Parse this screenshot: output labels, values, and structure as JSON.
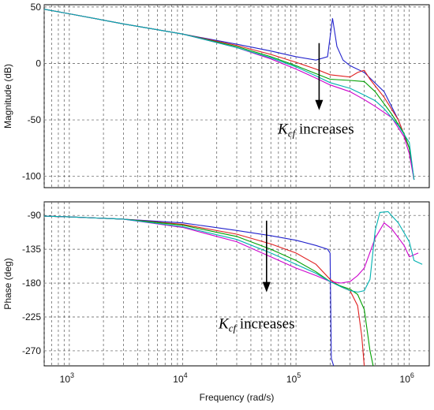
{
  "chart_data": {
    "type": "line",
    "x_scale": "log",
    "xlabel": "Frequency  (rad/s)",
    "xlim": [
      600,
      1500000
    ],
    "x_ticks": [
      {
        "value": 1000,
        "base": "10",
        "exp": "3"
      },
      {
        "value": 10000,
        "base": "10",
        "exp": "4"
      },
      {
        "value": 100000,
        "base": "10",
        "exp": "5"
      },
      {
        "value": 1000000,
        "base": "10",
        "exp": "6"
      }
    ],
    "grid": true,
    "legend": "none",
    "series_colors": [
      "#2222cc",
      "#e02020",
      "#00a000",
      "#cc00cc",
      "#00b0b0",
      "#c000c0"
    ],
    "panels": [
      {
        "id": "magnitude",
        "ylabel": "Magnitude  (dB)",
        "ylim": [
          -110,
          52
        ],
        "y_ticks": [
          50,
          0,
          -50,
          -100
        ],
        "y_tick_labels": [
          "50",
          "0",
          "-50",
          "-100"
        ],
        "annotation": {
          "symbol": "K",
          "subscript": "cf",
          "text": "increases",
          "arrow_x": 160000,
          "arrow_y": [
            18,
            -40
          ],
          "text_x": 150000,
          "text_y": -62
        },
        "series": [
          {
            "color": "#2222cc",
            "points": [
              [
                600,
                48
              ],
              [
                1000,
                44
              ],
              [
                3000,
                35
              ],
              [
                10000,
                26
              ],
              [
                30000,
                17
              ],
              [
                60000,
                11
              ],
              [
                100000,
                6
              ],
              [
                150000,
                3
              ],
              [
                190000,
                6
              ],
              [
                210000,
                40
              ],
              [
                230000,
                15
              ],
              [
                260000,
                3
              ],
              [
                300000,
                -2
              ],
              [
                400000,
                -8
              ],
              [
                600000,
                -25
              ],
              [
                800000,
                -50
              ],
              [
                1000000,
                -75
              ],
              [
                1100000,
                -103
              ]
            ]
          },
          {
            "color": "#e02020",
            "points": [
              [
                600,
                48
              ],
              [
                1000,
                44
              ],
              [
                3000,
                35
              ],
              [
                10000,
                26
              ],
              [
                30000,
                16
              ],
              [
                60000,
                8
              ],
              [
                100000,
                1
              ],
              [
                150000,
                -5
              ],
              [
                200000,
                -10
              ],
              [
                300000,
                -12
              ],
              [
                350000,
                -8
              ],
              [
                400000,
                -6
              ],
              [
                450000,
                -14
              ],
              [
                600000,
                -30
              ],
              [
                800000,
                -50
              ],
              [
                1000000,
                -75
              ],
              [
                1100000,
                -103
              ]
            ]
          },
          {
            "color": "#00a000",
            "points": [
              [
                600,
                48
              ],
              [
                1000,
                44
              ],
              [
                3000,
                35
              ],
              [
                10000,
                26
              ],
              [
                30000,
                15
              ],
              [
                60000,
                6
              ],
              [
                100000,
                -2
              ],
              [
                150000,
                -9
              ],
              [
                200000,
                -14
              ],
              [
                300000,
                -15
              ],
              [
                400000,
                -16
              ],
              [
                500000,
                -25
              ],
              [
                700000,
                -45
              ],
              [
                900000,
                -62
              ],
              [
                1000000,
                -75
              ],
              [
                1100000,
                -103
              ]
            ]
          },
          {
            "color": "#cc00cc",
            "points": [
              [
                600,
                48
              ],
              [
                1000,
                44
              ],
              [
                3000,
                35
              ],
              [
                10000,
                26
              ],
              [
                30000,
                14
              ],
              [
                60000,
                4
              ],
              [
                100000,
                -5
              ],
              [
                150000,
                -13
              ],
              [
                200000,
                -19
              ],
              [
                300000,
                -25
              ],
              [
                400000,
                -32
              ],
              [
                500000,
                -38
              ],
              [
                700000,
                -48
              ],
              [
                900000,
                -65
              ],
              [
                1000000,
                -80
              ],
              [
                1100000,
                -103
              ]
            ]
          },
          {
            "color": "#00b0b0",
            "points": [
              [
                600,
                48
              ],
              [
                1000,
                44
              ],
              [
                3000,
                35
              ],
              [
                10000,
                26
              ],
              [
                30000,
                14
              ],
              [
                60000,
                5
              ],
              [
                100000,
                -3
              ],
              [
                150000,
                -11
              ],
              [
                200000,
                -17
              ],
              [
                300000,
                -22
              ],
              [
                400000,
                -28
              ],
              [
                500000,
                -33
              ],
              [
                600000,
                -40
              ],
              [
                800000,
                -55
              ],
              [
                1000000,
                -70
              ],
              [
                1100000,
                -103
              ]
            ]
          }
        ]
      },
      {
        "id": "phase",
        "ylabel": "Phase  (deg)",
        "ylim": [
          -290,
          -72
        ],
        "y_ticks": [
          -90,
          -135,
          -180,
          -225,
          -270
        ],
        "y_tick_labels": [
          "-90",
          "-135",
          "-180",
          "-225",
          "-270"
        ],
        "annotation": {
          "symbol": "K",
          "subscript": "cf",
          "text": "increases",
          "arrow_x": 55000,
          "arrow_y": [
            -97,
            -190
          ],
          "text_x": 45000,
          "text_y": -240
        },
        "series": [
          {
            "color": "#2222cc",
            "points": [
              [
                600,
                -91
              ],
              [
                1000,
                -92
              ],
              [
                3000,
                -95
              ],
              [
                10000,
                -100
              ],
              [
                30000,
                -110
              ],
              [
                60000,
                -117
              ],
              [
                100000,
                -123
              ],
              [
                150000,
                -130
              ],
              [
                190000,
                -135
              ],
              [
                200000,
                -140
              ],
              [
                205000,
                -280
              ],
              [
                215000,
                -295
              ]
            ]
          },
          {
            "color": "#e02020",
            "points": [
              [
                600,
                -91
              ],
              [
                1000,
                -92
              ],
              [
                3000,
                -95
              ],
              [
                10000,
                -102
              ],
              [
                30000,
                -115
              ],
              [
                60000,
                -128
              ],
              [
                100000,
                -140
              ],
              [
                150000,
                -155
              ],
              [
                200000,
                -175
              ],
              [
                250000,
                -185
              ],
              [
                300000,
                -190
              ],
              [
                350000,
                -210
              ],
              [
                380000,
                -250
              ],
              [
                400000,
                -295
              ]
            ]
          },
          {
            "color": "#00a000",
            "points": [
              [
                600,
                -91
              ],
              [
                1000,
                -92
              ],
              [
                3000,
                -95
              ],
              [
                10000,
                -103
              ],
              [
                30000,
                -118
              ],
              [
                60000,
                -135
              ],
              [
                100000,
                -150
              ],
              [
                150000,
                -165
              ],
              [
                200000,
                -178
              ],
              [
                250000,
                -184
              ],
              [
                300000,
                -188
              ],
              [
                350000,
                -195
              ],
              [
                400000,
                -215
              ],
              [
                450000,
                -270
              ],
              [
                480000,
                -295
              ]
            ]
          },
          {
            "color": "#cc00cc",
            "points": [
              [
                600,
                -91
              ],
              [
                1000,
                -92
              ],
              [
                3000,
                -95
              ],
              [
                10000,
                -106
              ],
              [
                30000,
                -125
              ],
              [
                60000,
                -145
              ],
              [
                100000,
                -160
              ],
              [
                150000,
                -170
              ],
              [
                200000,
                -178
              ],
              [
                250000,
                -180
              ],
              [
                300000,
                -178
              ],
              [
                350000,
                -170
              ],
              [
                400000,
                -160
              ],
              [
                500000,
                -120
              ],
              [
                600000,
                -100
              ],
              [
                700000,
                -108
              ],
              [
                900000,
                -130
              ],
              [
                1000000,
                -145
              ],
              [
                1200000,
                -140
              ]
            ]
          },
          {
            "color": "#00b0b0",
            "points": [
              [
                600,
                -91
              ],
              [
                1000,
                -92
              ],
              [
                3000,
                -95
              ],
              [
                10000,
                -105
              ],
              [
                30000,
                -122
              ],
              [
                60000,
                -140
              ],
              [
                100000,
                -155
              ],
              [
                150000,
                -167
              ],
              [
                200000,
                -178
              ],
              [
                250000,
                -185
              ],
              [
                300000,
                -190
              ],
              [
                350000,
                -192
              ],
              [
                400000,
                -190
              ],
              [
                450000,
                -175
              ],
              [
                500000,
                -110
              ],
              [
                550000,
                -86
              ],
              [
                650000,
                -85
              ],
              [
                800000,
                -100
              ],
              [
                1000000,
                -125
              ],
              [
                1100000,
                -150
              ],
              [
                1300000,
                -155
              ]
            ]
          }
        ]
      }
    ]
  }
}
